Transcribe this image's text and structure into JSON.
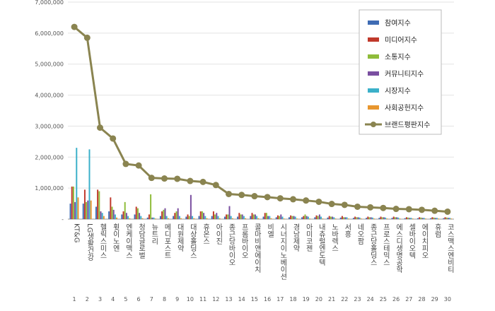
{
  "chart_data": {
    "type": "bar",
    "title": "",
    "xlabel": "",
    "ylabel": "",
    "ylim": [
      0,
      7000000
    ],
    "yticks": [
      0,
      1000000,
      2000000,
      3000000,
      4000000,
      5000000,
      6000000,
      7000000
    ],
    "ytick_labels": [
      "-",
      "1,000,000",
      "2,000,000",
      "3,000,000",
      "4,000,000",
      "5,000,000",
      "6,000,000",
      "7,000,000"
    ],
    "grid": "horizontal",
    "legend_position": "top-right",
    "categories": [
      "KT&G",
      "LG생활건강",
      "헬릭스미스",
      "휫이노엔",
      "엔케이맥스",
      "청담글로벌",
      "뉴트리",
      "메디포스트",
      "대원제약",
      "대상홀딩스",
      "휴온스",
      "아이진",
      "종근당바이오",
      "프롬바이오",
      "콜마비앤에이치",
      "비엘",
      "시너지이노베이션",
      "경남제약",
      "아미코젠",
      "내츄럴엔도텍",
      "노바렉스",
      "서흥",
      "네오팜",
      "종근당홀딩스",
      "프로스테믹스",
      "에스디생명공학",
      "셀바이오텍",
      "에이치피오",
      "휴럼",
      "코스맥스엔비티"
    ],
    "ranks": [
      "1",
      "2",
      "3",
      "4",
      "5",
      "6",
      "7",
      "8",
      "9",
      "10",
      "11",
      "12",
      "13",
      "14",
      "15",
      "16",
      "17",
      "18",
      "19",
      "20",
      "21",
      "22",
      "23",
      "24",
      "25",
      "26",
      "27",
      "28",
      "29",
      "30"
    ],
    "series": [
      {
        "name": "참여지수",
        "kind": "bar",
        "color": "#3f6cb4",
        "values": [
          500000,
          500000,
          400000,
          250000,
          150000,
          150000,
          50000,
          100000,
          100000,
          80000,
          100000,
          100000,
          80000,
          80000,
          100000,
          80000,
          60000,
          60000,
          60000,
          60000,
          50000,
          50000,
          40000,
          40000,
          40000,
          40000,
          30000,
          30000,
          30000,
          30000
        ]
      },
      {
        "name": "미디어지수",
        "kind": "bar",
        "color": "#c0392b",
        "values": [
          1050000,
          950000,
          950000,
          700000,
          250000,
          400000,
          150000,
          250000,
          200000,
          150000,
          250000,
          250000,
          150000,
          200000,
          200000,
          200000,
          120000,
          120000,
          100000,
          120000,
          100000,
          100000,
          80000,
          80000,
          80000,
          80000,
          60000,
          60000,
          60000,
          60000
        ]
      },
      {
        "name": "소통지수",
        "kind": "bar",
        "color": "#8fbc3a",
        "values": [
          1050000,
          550000,
          900000,
          400000,
          550000,
          350000,
          800000,
          300000,
          250000,
          100000,
          250000,
          150000,
          150000,
          150000,
          150000,
          200000,
          100000,
          100000,
          150000,
          100000,
          80000,
          60000,
          60000,
          60000,
          60000,
          60000,
          50000,
          50000,
          50000,
          50000
        ]
      },
      {
        "name": "커뮤니티지수",
        "kind": "bar",
        "color": "#7a4fa0",
        "values": [
          550000,
          600000,
          250000,
          300000,
          200000,
          200000,
          50000,
          350000,
          350000,
          780000,
          200000,
          200000,
          420000,
          150000,
          150000,
          100000,
          150000,
          100000,
          100000,
          150000,
          80000,
          60000,
          60000,
          60000,
          60000,
          60000,
          40000,
          40000,
          40000,
          40000
        ]
      },
      {
        "name": "시장지수",
        "kind": "bar",
        "color": "#3bb0c9",
        "values": [
          2300000,
          2250000,
          200000,
          150000,
          100000,
          100000,
          50000,
          100000,
          100000,
          100000,
          100000,
          100000,
          100000,
          100000,
          100000,
          100000,
          80000,
          80000,
          80000,
          80000,
          60000,
          60000,
          50000,
          50000,
          50000,
          50000,
          40000,
          40000,
          40000,
          40000
        ]
      },
      {
        "name": "사회공헌지수",
        "kind": "bar",
        "color": "#e8962e",
        "values": [
          700000,
          600000,
          100000,
          50000,
          30000,
          30000,
          20000,
          30000,
          30000,
          30000,
          30000,
          30000,
          30000,
          30000,
          30000,
          30000,
          20000,
          20000,
          20000,
          20000,
          20000,
          20000,
          20000,
          20000,
          20000,
          20000,
          20000,
          20000,
          20000,
          20000
        ]
      },
      {
        "name": "브랜드평판지수",
        "kind": "line",
        "color": "#8a8450",
        "values": [
          6200000,
          5850000,
          2950000,
          2600000,
          1780000,
          1730000,
          1330000,
          1310000,
          1300000,
          1230000,
          1200000,
          1100000,
          810000,
          780000,
          740000,
          710000,
          670000,
          640000,
          600000,
          560000,
          490000,
          460000,
          400000,
          380000,
          360000,
          330000,
          320000,
          300000,
          270000,
          240000
        ]
      }
    ]
  }
}
